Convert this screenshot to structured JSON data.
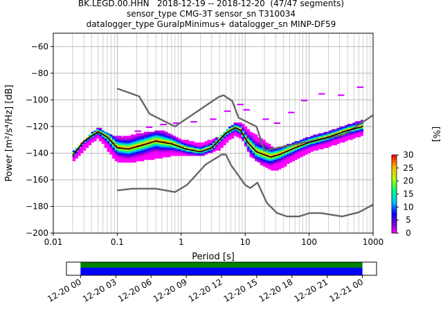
{
  "header": {
    "line1": "BK.LEGD.00.HHN   2018-12-19 -- 2018-12-20  (47/47 segments)",
    "line2": "sensor_type CMG-3T sensor_sn T310034",
    "line3": "datalogger_type GuralpMinimus+ datalogger_sn MINP-DF59"
  },
  "chart_data": [
    {
      "type": "heatmap",
      "title": "BK.LEGD.00.HHN   2018-12-19 -- 2018-12-20  (47/47 segments)",
      "xlabel": "Period [s]",
      "ylabel": "Power [m²/s⁴/Hz] [dB]",
      "x_scale": "log",
      "xlim": [
        0.01,
        1000
      ],
      "ylim": [
        -200,
        -50
      ],
      "x_ticks": [
        "0.01",
        "0.1",
        "1",
        "10",
        "100",
        "1000"
      ],
      "x_tick_values": [
        0.01,
        0.1,
        1,
        10,
        100,
        1000
      ],
      "y_ticks": [
        -200,
        -180,
        -160,
        -140,
        -120,
        -100,
        -80,
        -60
      ],
      "grid": true,
      "colorbar": {
        "label": "[%]",
        "ticks": [
          0,
          5,
          10,
          15,
          20,
          25,
          30
        ],
        "range": [
          0,
          30
        ]
      },
      "series": [
        {
          "name": "noise-model-high",
          "color": "#666666",
          "x": [
            0.1,
            0.22,
            0.32,
            0.8,
            3.8,
            4.6,
            6.3,
            7.9,
            15,
            20,
            354,
            1000
          ],
          "y": [
            -91.5,
            -97.4,
            -110.5,
            -120.0,
            -98.0,
            -96.5,
            -101.0,
            -113.5,
            -120.0,
            -138.0,
            -126.0,
            -111.5
          ]
        },
        {
          "name": "noise-model-low",
          "color": "#666666",
          "x": [
            0.1,
            0.17,
            0.4,
            0.8,
            1.24,
            2.4,
            4.3,
            5.0,
            6.0,
            10,
            12,
            15.6,
            21.9,
            31.6,
            45,
            70,
            101,
            154,
            328,
            600,
            1000
          ],
          "y": [
            -168.0,
            -166.7,
            -166.7,
            -169.2,
            -163.7,
            -148.6,
            -141.1,
            -141.1,
            -149.0,
            -163.8,
            -166.2,
            -162.1,
            -177.5,
            -185.0,
            -187.5,
            -187.5,
            -185.0,
            -185.0,
            -187.5,
            -184.4,
            -178.6
          ]
        },
        {
          "name": "mode",
          "color": "#000000",
          "x": [
            0.02,
            0.03,
            0.05,
            0.07,
            0.1,
            0.15,
            0.25,
            0.4,
            0.7,
            1.2,
            2,
            3,
            5,
            7,
            8.5,
            11,
            15,
            25,
            35,
            60,
            100,
            200,
            400,
            700
          ],
          "y": [
            -142,
            -131,
            -124,
            -128,
            -136,
            -137,
            -134,
            -131,
            -133,
            -137,
            -139,
            -136,
            -125,
            -121,
            -123,
            -132,
            -139,
            -143,
            -141,
            -136,
            -132,
            -128,
            -123,
            -120
          ]
        }
      ],
      "spread_band": {
        "x": [
          0.02,
          0.05,
          0.1,
          0.2,
          0.5,
          1,
          2,
          4,
          7,
          9,
          12,
          20,
          30,
          60,
          100,
          200,
          400,
          700
        ],
        "upper": [
          -139,
          -121,
          -129,
          -126,
          -123,
          -130,
          -133,
          -128,
          -117,
          -118,
          -124,
          -131,
          -137,
          -132,
          -128,
          -124,
          -119,
          -115
        ],
        "lower": [
          -146,
          -128,
          -147,
          -146,
          -143,
          -141,
          -142,
          -137,
          -126,
          -129,
          -142,
          -150,
          -153,
          -145,
          -139,
          -135,
          -130,
          -126
        ]
      },
      "outliers": {
        "x": [
          0.1,
          0.2,
          0.3,
          0.5,
          0.8,
          1.5,
          3,
          5,
          8,
          10,
          20,
          30,
          50,
          80,
          150,
          300,
          600
        ],
        "y": [
          -128,
          -124,
          -121,
          -119,
          -118,
          -117,
          -115,
          -109,
          -104,
          -108,
          -115,
          -118,
          -110,
          -101,
          -96,
          -97,
          -91
        ]
      }
    },
    {
      "type": "bar",
      "title": "",
      "xlabel": "",
      "ylabel": "",
      "x_ticks": [
        "12-20 00",
        "12-20 03",
        "12-20 06",
        "12-20 09",
        "12-20 12",
        "12-20 15",
        "12-20 18",
        "12-20 21",
        "12-21 00"
      ],
      "x_tick_hours": [
        0,
        3,
        6,
        9,
        12,
        15,
        18,
        21,
        24
      ],
      "xlim_hours": [
        -1.2,
        25.2
      ],
      "coverage": {
        "start_hour": 0,
        "end_hour": 24,
        "colors": [
          "#008000",
          "#0000ff"
        ]
      }
    }
  ]
}
